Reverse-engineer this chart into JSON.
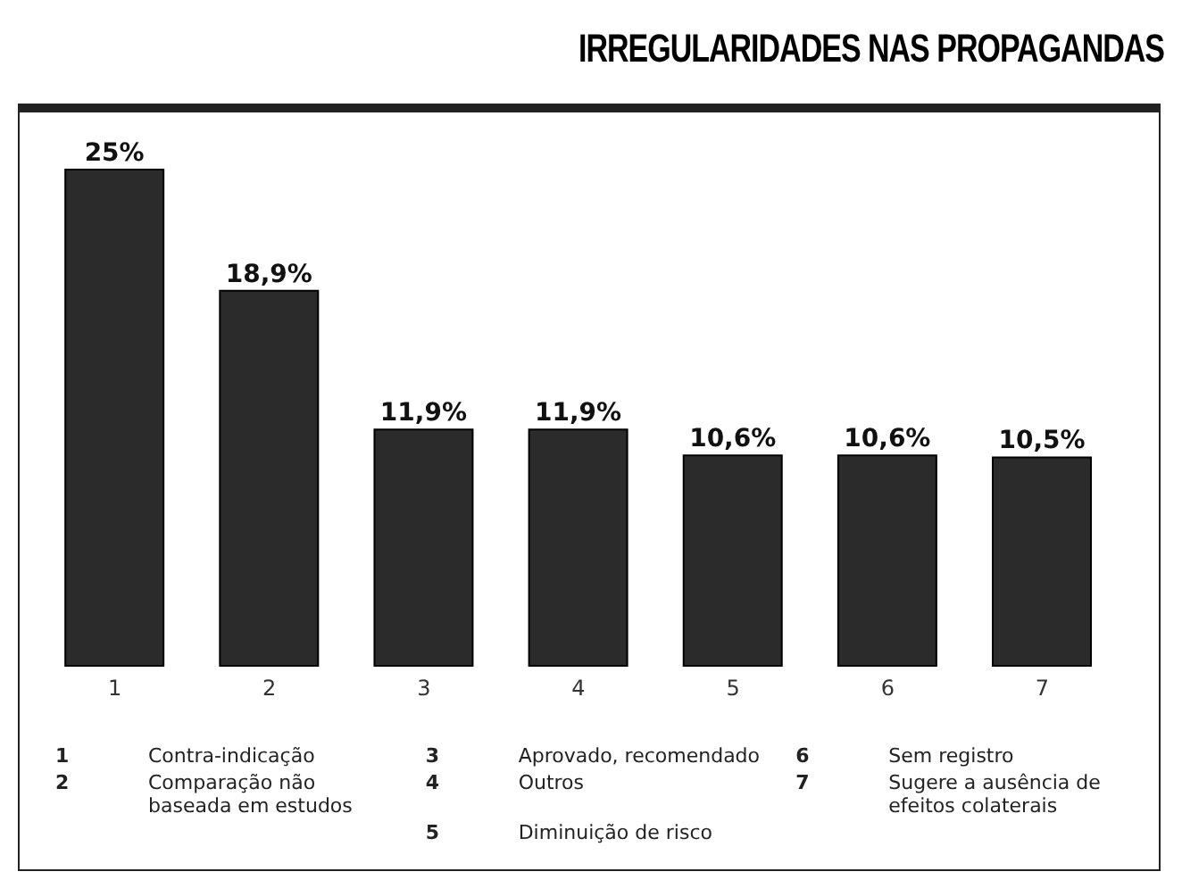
{
  "chart_data": {
    "type": "bar",
    "title": "IRREGULARIDADES NAS PROPAGANDAS",
    "categories": [
      "1",
      "2",
      "3",
      "4",
      "5",
      "6",
      "7"
    ],
    "values": [
      25,
      18.9,
      11.9,
      11.9,
      10.6,
      10.6,
      10.5
    ],
    "value_labels": [
      "25%",
      "18,9%",
      "11,9%",
      "11,9%",
      "10,6%",
      "10,6%",
      "10,5%"
    ],
    "color": "#2b2b2b",
    "annotations": [
      "1 Contra-indicação",
      "2 Comparação não baseada em estudos",
      "3 Aprovado, recomendado",
      "4 Outros",
      "5 Diminuição de risco",
      "6 Sem registro",
      "7 Sugere a ausência de efeitos colaterais"
    ]
  }
}
